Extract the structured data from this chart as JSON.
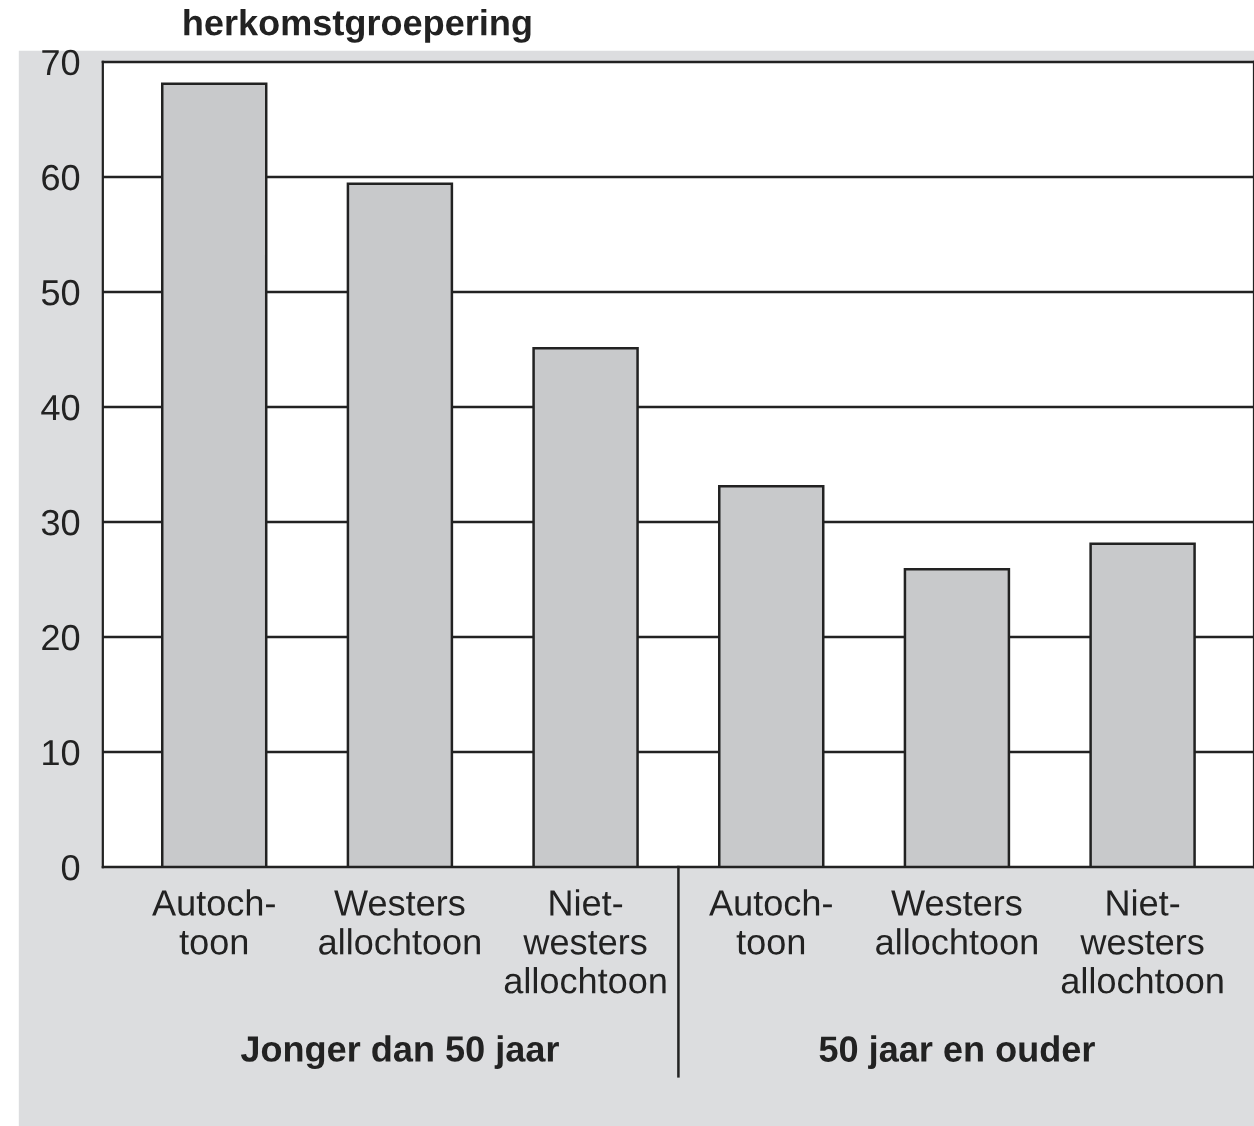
{
  "chart_data": {
    "type": "bar",
    "title": "herkomstgroepering",
    "categories": [
      "Autoch-\ntoon",
      "Westers\nallochtoon",
      "Niet-\nwesters\nallochtoon",
      "Autoch-\ntoon",
      "Westers\nallochtoon",
      "Niet-\nwesters\nallochtoon"
    ],
    "values": [
      68.1,
      59.4,
      45.1,
      33.1,
      25.9,
      28.1
    ],
    "color": "#c8c9cb",
    "ylim": [
      0,
      70
    ],
    "yticks": [
      0,
      10,
      20,
      30,
      40,
      50,
      60,
      70
    ],
    "grid": "y",
    "annotations": [
      "Jonger dan 50 jaar",
      "50 jaar en ouder"
    ]
  }
}
